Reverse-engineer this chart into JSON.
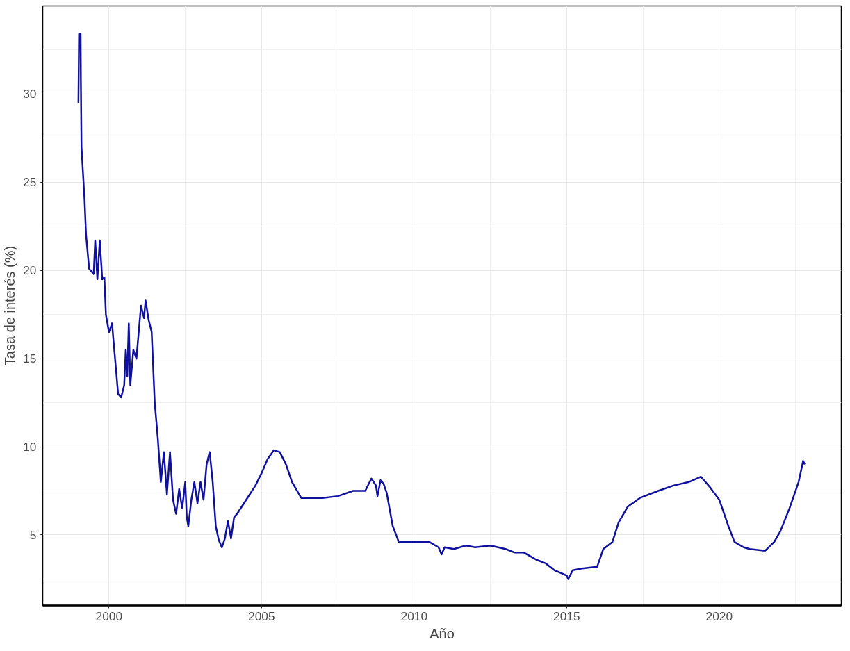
{
  "chart_data": {
    "type": "line",
    "xlabel": "Año",
    "ylabel": "Tasa de interés (%)",
    "xlim": [
      1997.83,
      2024.0
    ],
    "ylim": [
      1.0,
      35.0
    ],
    "xticks": [
      2000,
      2005,
      2010,
      2015,
      2020
    ],
    "yticks": [
      5,
      10,
      15,
      20,
      25,
      30
    ],
    "grid": true,
    "marker": "none",
    "line_style": "solid",
    "series": [
      {
        "color": "#1010a0",
        "x": [
          1999.0,
          1999.02,
          1999.07,
          1999.08,
          1999.1,
          1999.2,
          1999.25,
          1999.35,
          1999.5,
          1999.55,
          1999.62,
          1999.7,
          1999.78,
          1999.85,
          1999.9,
          2000.0,
          2000.1,
          2000.2,
          2000.3,
          2000.4,
          2000.5,
          2000.55,
          2000.6,
          2000.65,
          2000.7,
          2000.8,
          2000.9,
          2001.0,
          2001.05,
          2001.15,
          2001.2,
          2001.3,
          2001.4,
          2001.5,
          2001.6,
          2001.7,
          2001.8,
          2001.9,
          2002.0,
          2002.1,
          2002.2,
          2002.3,
          2002.4,
          2002.5,
          2002.55,
          2002.6,
          2002.7,
          2002.8,
          2002.9,
          2003.0,
          2003.1,
          2003.2,
          2003.3,
          2003.4,
          2003.5,
          2003.6,
          2003.7,
          2003.8,
          2003.9,
          2004.0,
          2004.1,
          2004.2,
          2004.5,
          2004.8,
          2005.0,
          2005.2,
          2005.4,
          2005.6,
          2005.8,
          2006.0,
          2006.3,
          2007.0,
          2007.5,
          2008.0,
          2008.4,
          2008.6,
          2008.75,
          2008.8,
          2008.9,
          2009.0,
          2009.1,
          2009.3,
          2009.5,
          2010.0,
          2010.5,
          2010.8,
          2010.9,
          2011.0,
          2011.3,
          2011.7,
          2012.0,
          2012.5,
          2013.0,
          2013.3,
          2013.6,
          2014.0,
          2014.3,
          2014.6,
          2015.0,
          2015.05,
          2015.2,
          2015.5,
          2016.0,
          2016.2,
          2016.5,
          2016.7,
          2017.0,
          2017.4,
          2018.0,
          2018.5,
          2019.0,
          2019.4,
          2019.7,
          2020.0,
          2020.3,
          2020.5,
          2020.8,
          2021.0,
          2021.5,
          2021.8,
          2022.0,
          2022.3,
          2022.6,
          2022.75,
          2022.8
        ],
        "values": [
          29.5,
          33.4,
          33.4,
          30.8,
          27.0,
          24.0,
          22.0,
          20.1,
          19.8,
          21.7,
          19.5,
          21.7,
          19.5,
          19.6,
          17.5,
          16.5,
          17.0,
          15.0,
          13.0,
          12.8,
          13.5,
          15.5,
          14.0,
          17.0,
          13.5,
          15.5,
          15.0,
          17.0,
          18.0,
          17.3,
          18.3,
          17.2,
          16.5,
          12.5,
          10.5,
          8.0,
          9.7,
          7.3,
          9.7,
          7.0,
          6.2,
          7.6,
          6.5,
          8.0,
          6.0,
          5.5,
          7.0,
          8.0,
          6.8,
          8.0,
          7.0,
          9.0,
          9.7,
          8.0,
          5.5,
          4.7,
          4.3,
          4.8,
          5.8,
          4.8,
          6.0,
          6.2,
          7.0,
          7.8,
          8.5,
          9.3,
          9.8,
          9.7,
          9.0,
          8.0,
          7.1,
          7.1,
          7.2,
          7.5,
          7.5,
          8.2,
          7.8,
          7.2,
          8.1,
          7.9,
          7.4,
          5.5,
          4.6,
          4.6,
          4.6,
          4.3,
          3.9,
          4.3,
          4.2,
          4.4,
          4.3,
          4.4,
          4.2,
          4.0,
          4.0,
          3.6,
          3.4,
          3.0,
          2.7,
          2.5,
          3.0,
          3.1,
          3.2,
          4.2,
          4.6,
          5.7,
          6.6,
          7.1,
          7.5,
          7.8,
          8.0,
          8.3,
          7.7,
          7.0,
          5.5,
          4.6,
          4.3,
          4.2,
          4.1,
          4.6,
          5.2,
          6.5,
          8.0,
          9.2,
          9.0
        ]
      }
    ]
  }
}
